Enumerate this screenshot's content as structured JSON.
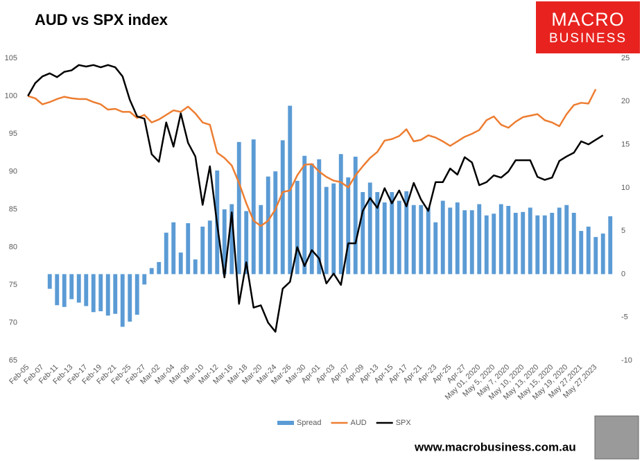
{
  "chart_data": {
    "type": "bar-line",
    "title": "AUD vs SPX index",
    "categories": [
      "Feb-05",
      null,
      "Feb-07",
      null,
      "Feb-11",
      null,
      "Feb-13",
      null,
      "Feb-17",
      null,
      "Feb-19",
      null,
      "Feb-21",
      null,
      "Feb-25",
      null,
      "Feb-27",
      null,
      "Mar-02",
      null,
      "Mar-04",
      null,
      "Mar-06",
      null,
      "Mar-10",
      null,
      "Mar-12",
      null,
      "Mar-16",
      null,
      "Mar-18",
      null,
      "Mar-20",
      null,
      "Mar-24",
      null,
      "Mar-26",
      null,
      "Mar-30",
      null,
      "Apr-01",
      null,
      "Apr-03",
      null,
      "Apr-07",
      null,
      "Apr-09",
      null,
      "Apr-13",
      null,
      "Apr-15",
      null,
      "Apr-17",
      null,
      "Apr-21",
      null,
      "Apr-23",
      null,
      "Apr-25",
      null,
      "Apr-27",
      null,
      "May 01, 2020",
      null,
      "May 5, 2020",
      null,
      "May 7, 2020",
      null,
      "May 10, 2020",
      null,
      "May 13, 2020",
      null,
      "May 15, 2020",
      null,
      "May 19, 2020",
      null,
      "May 27,2021",
      null,
      "May 27,2023",
      null,
      null
    ],
    "series": [
      {
        "name": "Spread",
        "color": "#5b9bd5",
        "kind": "bar",
        "axis": "y2",
        "values": [
          null,
          null,
          null,
          -1.7,
          -3.6,
          -3.8,
          -2.9,
          -3.3,
          -3.7,
          -4.4,
          -4.3,
          -4.8,
          -4.6,
          -6.1,
          -5.5,
          -4.7,
          -1.2,
          0.7,
          1.4,
          4.8,
          6.0,
          2.5,
          5.9,
          1.7,
          5.5,
          6.2,
          12.0,
          7.5,
          8.1,
          15.3,
          7.3,
          15.6,
          8.0,
          11.3,
          11.9,
          15.5,
          19.5,
          10.8,
          13.7,
          12.8,
          13.3,
          10.1,
          10.5,
          13.9,
          11.2,
          13.6,
          9.5,
          10.6,
          9.5,
          8.3,
          9.5,
          8.5,
          9.6,
          8.0,
          8.0,
          7.7,
          6.0,
          8.5,
          7.7,
          8.3,
          7.4,
          7.4,
          8.1,
          6.8,
          7.0,
          8.1,
          7.9,
          7.1,
          7.2,
          7.7,
          6.8,
          6.8,
          7.1,
          7.7,
          8.0,
          7.1,
          5.0,
          5.5,
          4.3,
          4.7,
          6.7
        ]
      },
      {
        "name": "AUD",
        "color": "#ed7d31",
        "kind": "line",
        "values": [
          100.0,
          99.7,
          98.9,
          99.2,
          99.6,
          99.9,
          99.7,
          99.6,
          99.6,
          99.2,
          98.9,
          98.2,
          98.3,
          97.9,
          97.9,
          97.1,
          97.5,
          96.5,
          96.9,
          97.5,
          98.1,
          97.9,
          98.6,
          97.7,
          96.5,
          96.2,
          92.5,
          91.8,
          90.8,
          88.5,
          85.8,
          83.5,
          82.8,
          83.5,
          85.0,
          87.3,
          87.5,
          89.5,
          90.9,
          91.0,
          90.0,
          89.3,
          88.8,
          88.6,
          87.9,
          89.5,
          90.7,
          91.8,
          92.6,
          94.1,
          94.3,
          94.7,
          95.6,
          94.0,
          94.2,
          94.8,
          94.5,
          94.0,
          93.4,
          94.0,
          94.6,
          95.0,
          95.5,
          96.8,
          97.3,
          96.2,
          95.8,
          96.6,
          97.2,
          97.4,
          97.6,
          96.8,
          96.5,
          96.0,
          97.6,
          98.8,
          99.1,
          99.0,
          100.9,
          null,
          null
        ]
      },
      {
        "name": "SPX",
        "color": "#000000",
        "kind": "line",
        "values": [
          100,
          101.7,
          102.6,
          103.0,
          102.5,
          103.2,
          103.4,
          104.1,
          103.9,
          104.1,
          103.8,
          104.1,
          103.8,
          102.6,
          99.5,
          97.3,
          97.0,
          92.3,
          91.3,
          96.5,
          93.3,
          97.7,
          93.8,
          92.0,
          85.6,
          90.7,
          83.0,
          76.0,
          84.6,
          72.5,
          78.0,
          72.0,
          72.3,
          70.0,
          68.8,
          74.5,
          75.4,
          80.0,
          77.5,
          79.6,
          78.5,
          75.2,
          76.5,
          75.0,
          80.5,
          80.5,
          84.8,
          86.5,
          85.2,
          87.8,
          85.8,
          87.5,
          85.4,
          88.5,
          86.3,
          84.8,
          88.6,
          88.6,
          90.4,
          89.6,
          91.9,
          91.2,
          88.2,
          88.6,
          89.5,
          89.2,
          90.0,
          91.5,
          91.5,
          91.5,
          89.3,
          88.9,
          89.2,
          91.4,
          92.0,
          92.5,
          94.0,
          93.6,
          94.2,
          94.8,
          null
        ]
      }
    ],
    "ylim": [
      65,
      105
    ],
    "yticks": [
      65,
      70,
      75,
      80,
      85,
      90,
      95,
      100,
      105
    ],
    "y2lim": [
      -10,
      25
    ],
    "y2ticks": [
      -10,
      -5,
      0,
      5,
      10,
      15,
      20,
      25
    ],
    "grid": false,
    "legend": "bottom"
  },
  "branding": {
    "logo": [
      "MACRO",
      "BUSINESS"
    ],
    "website": "www.macrobusiness.com.au"
  }
}
